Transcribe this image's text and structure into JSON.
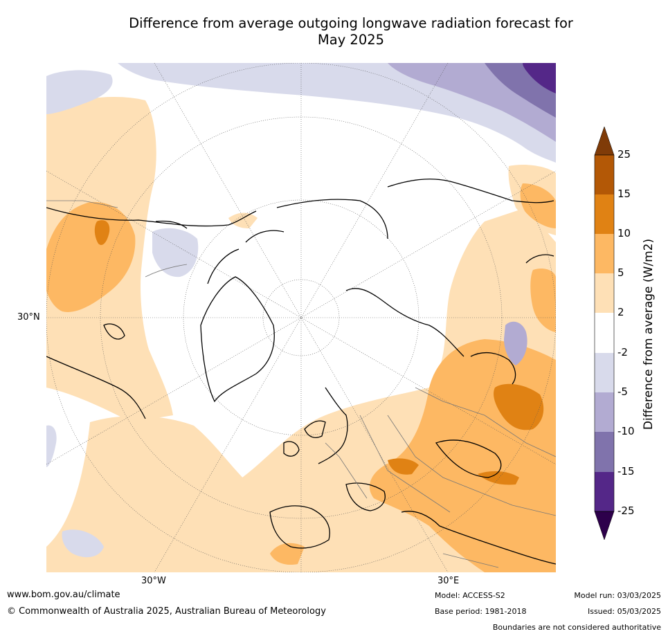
{
  "title_line1": "Difference from average outgoing longwave radiation forecast for",
  "title_line2": "May 2025",
  "map": {
    "projection": "north-polar",
    "lat_label": "30°N",
    "lon_labels": {
      "left": "30°W",
      "right": "30°E"
    },
    "graticule": "dotted",
    "anomaly_regions": [
      {
        "name": "north-pacific",
        "class": "2 to 5"
      },
      {
        "name": "central-north-pacific",
        "class": "5 to 10"
      },
      {
        "name": "eastern-europe-russia",
        "class": "5 to 10"
      },
      {
        "name": "western-russia-core",
        "class": "10 to 15"
      },
      {
        "name": "siberia-northeast",
        "class": "-10 to -5"
      },
      {
        "name": "siberia-far-northeast",
        "class": "-25 to -15"
      },
      {
        "name": "north-america-west",
        "class": "-5 to -2"
      },
      {
        "name": "north-atlantic-south",
        "class": "2 to 5"
      }
    ]
  },
  "colorbar": {
    "title": "Difference from average (W/m2)",
    "ticks": [
      "25",
      "15",
      "10",
      "5",
      "2",
      "-2",
      "-5",
      "-10",
      "-15",
      "-25"
    ],
    "colors": {
      "over": "#7f3b08",
      "15_25": "#b35806",
      "10_15": "#e08214",
      "5_10": "#fdb863",
      "2_5": "#fee0b6",
      "neutral": "#ffffff",
      "n5_n2": "#d8daeb",
      "n10_n5": "#b2abd2",
      "n15_n10": "#8073ac",
      "n25_n15": "#542788",
      "under": "#2d004b"
    }
  },
  "footer": {
    "website": "www.bom.gov.au/climate",
    "copyright": "© Commonwealth of Australia 2025, Australian Bureau of Meteorology",
    "model": "Model: ACCESS-S2",
    "base_period": "Base period: 1981-2018",
    "model_run": "Model run: 03/03/2025",
    "issued": "Issued: 05/03/2025",
    "disclaimer": "Boundaries are not considered authoritative"
  }
}
